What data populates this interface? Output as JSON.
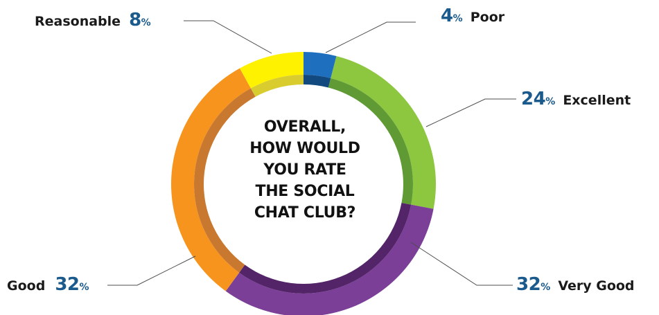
{
  "chart_data": {
    "type": "pie",
    "title": "OVERALL, HOW WOULD YOU RATE THE SOCIAL CHAT CLUB?",
    "title_lines": [
      "OVERALL,",
      "HOW WOULD",
      "YOU RATE",
      "THE SOCIAL",
      "CHAT CLUB?"
    ],
    "slices": [
      {
        "label": "Poor",
        "value": 4,
        "value_text": "4",
        "color": "#1f6fbf",
        "inner_color": "#124a80"
      },
      {
        "label": "Excellent",
        "value": 24,
        "value_text": "24",
        "color": "#8dc63f",
        "inner_color": "#5f9a35"
      },
      {
        "label": "Very Good",
        "value": 32,
        "value_text": "32",
        "color": "#7b3f98",
        "inner_color": "#542468"
      },
      {
        "label": "Good",
        "value": 32,
        "value_text": "32",
        "color": "#f7941d",
        "inner_color": "#c8782f"
      },
      {
        "label": "Reasonable",
        "value": 8,
        "value_text": "8",
        "color": "#fff200",
        "inner_color": "#d8cc2e"
      }
    ],
    "percent_symbol": "%",
    "donut": true,
    "legend": "none"
  }
}
